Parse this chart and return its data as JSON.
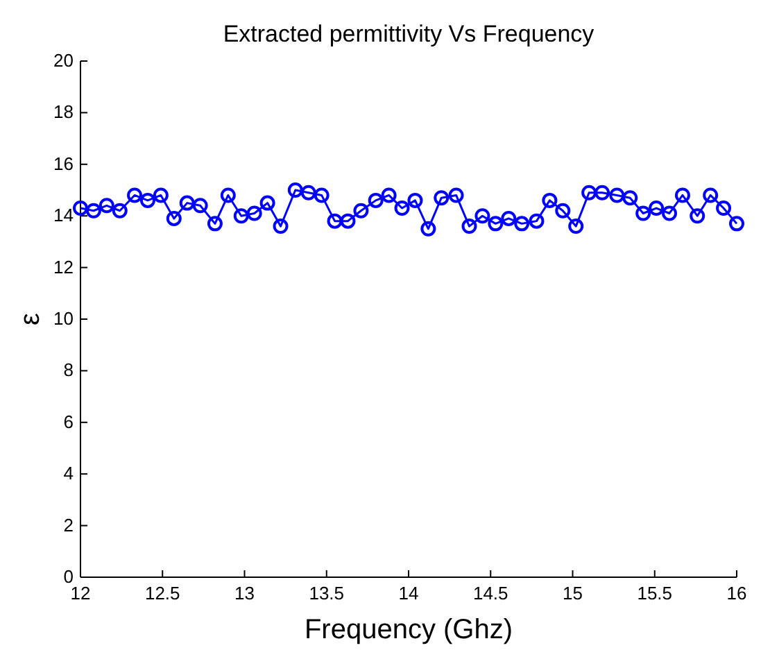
{
  "chart_data": {
    "type": "line",
    "title": "Extracted permittivity Vs Frequency",
    "xlabel": "Frequency (Ghz)",
    "ylabel": "ε",
    "x": [
      12,
      12.08,
      12.16,
      12.24,
      12.33,
      12.41,
      12.49,
      12.57,
      12.65,
      12.73,
      12.82,
      12.9,
      12.98,
      13.06,
      13.14,
      13.22,
      13.31,
      13.39,
      13.47,
      13.55,
      13.63,
      13.71,
      13.8,
      13.88,
      13.96,
      14.04,
      14.12,
      14.2,
      14.29,
      14.37,
      14.45,
      14.53,
      14.61,
      14.69,
      14.78,
      14.86,
      14.94,
      15.02,
      15.1,
      15.18,
      15.27,
      15.35,
      15.43,
      15.51,
      15.59,
      15.67,
      15.76,
      15.84,
      15.92,
      16
    ],
    "series": [
      {
        "color": "#0000ff",
        "values": [
          14.3,
          14.2,
          14.4,
          14.2,
          14.8,
          14.6,
          14.8,
          13.9,
          14.5,
          14.4,
          13.7,
          14.8,
          14.0,
          14.1,
          14.5,
          13.6,
          15.0,
          14.9,
          14.8,
          13.8,
          13.8,
          14.2,
          14.6,
          14.8,
          14.3,
          14.6,
          13.5,
          14.7,
          14.8,
          13.6,
          14.0,
          13.7,
          13.9,
          13.7,
          13.8,
          14.6,
          14.2,
          13.6,
          14.9,
          14.9,
          14.8,
          14.7,
          14.1,
          14.3,
          14.1,
          14.8,
          14.0,
          14.8,
          14.3,
          13.7
        ]
      }
    ],
    "xlim": [
      12,
      16
    ],
    "xticks": [
      12,
      12.5,
      13,
      13.5,
      14,
      14.5,
      15,
      15.5,
      16
    ],
    "ylim": [
      0,
      20
    ],
    "yticks": [
      0,
      2,
      4,
      6,
      8,
      10,
      12,
      14,
      16,
      18,
      20
    ],
    "grid": false,
    "marker": "circle",
    "line_style": "solid"
  }
}
